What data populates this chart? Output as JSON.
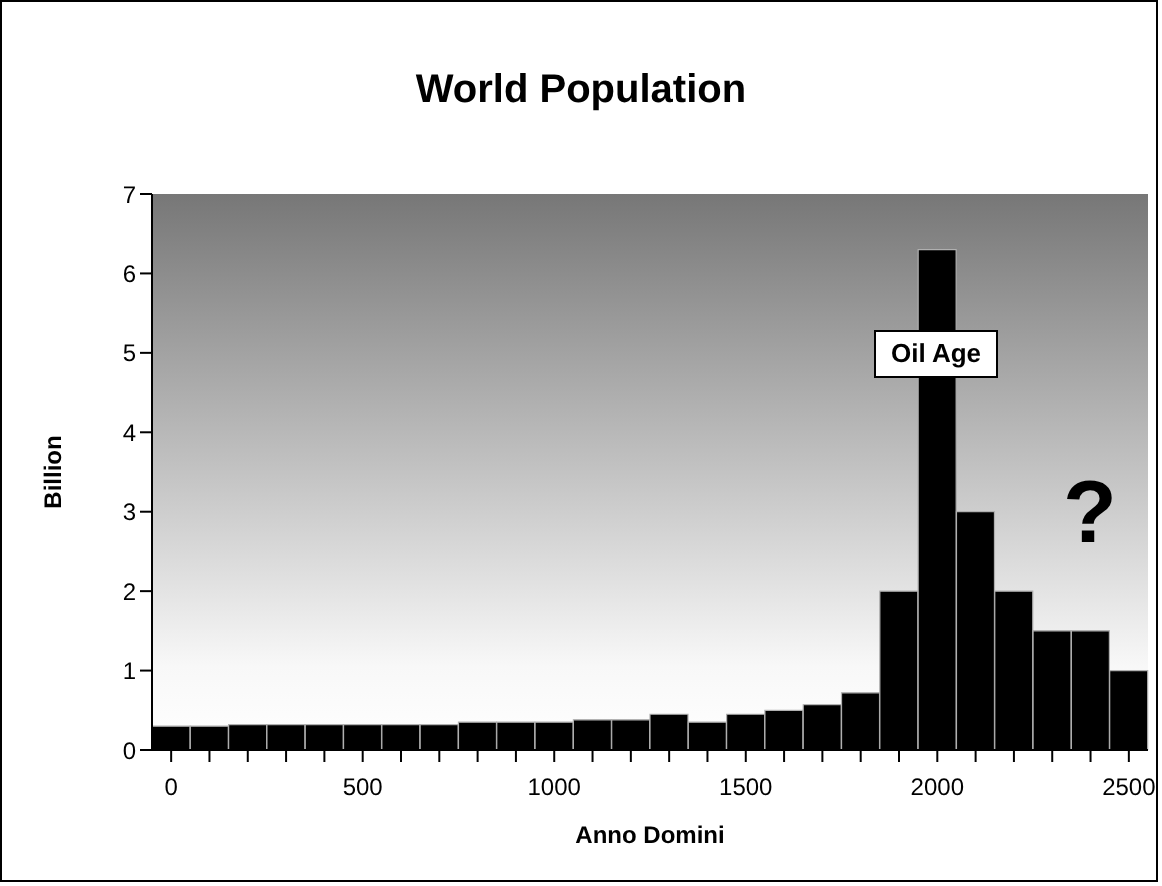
{
  "chart_data": {
    "type": "bar",
    "title": "World Population",
    "xlabel": "Anno Domini",
    "ylabel": "Billion",
    "categories": [
      "0",
      null,
      null,
      null,
      null,
      "500",
      null,
      null,
      null,
      null,
      "1000",
      null,
      null,
      null,
      null,
      "1500",
      null,
      null,
      null,
      null,
      "2000",
      null,
      null,
      null,
      null,
      "2500"
    ],
    "values": [
      0.3,
      0.3,
      0.32,
      0.32,
      0.32,
      0.32,
      0.32,
      0.32,
      0.35,
      0.35,
      0.35,
      0.38,
      0.38,
      0.45,
      0.35,
      0.45,
      0.5,
      0.57,
      0.72,
      2,
      6.3,
      3,
      2,
      1.5,
      1.5,
      1
    ],
    "color": "#000000",
    "ylim": [
      0,
      7
    ],
    "yticks": [
      0,
      1,
      2,
      3,
      4,
      5,
      6,
      7
    ],
    "annotations": [
      "Oil Age",
      "?"
    ],
    "grid": false,
    "legend": false
  }
}
